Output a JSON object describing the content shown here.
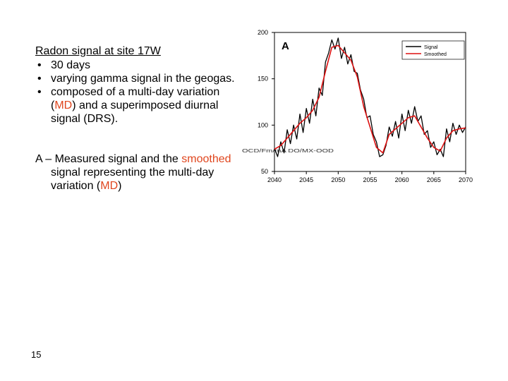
{
  "text": {
    "title": "Radon signal at site 17W",
    "bullets": [
      {
        "parts": [
          "30 days"
        ]
      },
      {
        "parts": [
          "varying gamma signal in the geogas."
        ]
      },
      {
        "parts": [
          "composed of a multi-day variation (",
          "MD",
          ") and a superimposed diurnal signal (DRS)."
        ]
      }
    ],
    "paragraph": [
      "A – Measured signal and the ",
      "smoothed",
      " signal representing the multi-day variation (",
      "MD",
      ")"
    ],
    "slide_number": "15"
  },
  "colors": {
    "highlight": "#e0461e",
    "signal": "#000000",
    "smoothed": "#dd1111"
  },
  "chart_data": {
    "type": "line",
    "panel_label": "A",
    "title": "",
    "xlabel": "",
    "ylabel": "",
    "xlim": [
      2040,
      2070
    ],
    "ylim": [
      50,
      200
    ],
    "xticks": [
      "2040",
      "2045",
      "2050",
      "2055",
      "2060",
      "2065",
      "2070"
    ],
    "yticks": [
      "50",
      "100",
      "150",
      "200"
    ],
    "legend_position": "top-right",
    "axis_annotation": "OCD/Fm/mA DO/MX-OOD",
    "series": [
      {
        "name": "Signal",
        "color": "#000000",
        "x": [
          2040,
          2040.5,
          2041,
          2041.5,
          2042,
          2042.5,
          2043,
          2043.5,
          2044,
          2044.5,
          2045,
          2045.5,
          2046,
          2046.5,
          2047,
          2047.5,
          2048,
          2048.5,
          2049,
          2049.5,
          2050,
          2050.5,
          2051,
          2051.5,
          2052,
          2052.5,
          2053,
          2053.5,
          2054,
          2054.5,
          2055,
          2055.5,
          2056,
          2056.5,
          2057,
          2057.5,
          2058,
          2058.5,
          2059,
          2059.5,
          2060,
          2060.5,
          2061,
          2061.5,
          2062,
          2062.5,
          2063,
          2063.5,
          2064,
          2064.5,
          2065,
          2065.5,
          2066,
          2066.5,
          2067,
          2067.5,
          2068,
          2068.5,
          2069,
          2069.5,
          2070
        ],
        "y": [
          75,
          66,
          82,
          70,
          95,
          80,
          100,
          85,
          112,
          92,
          118,
          102,
          128,
          110,
          140,
          132,
          168,
          178,
          192,
          182,
          194,
          172,
          184,
          166,
          176,
          158,
          156,
          138,
          128,
          108,
          110,
          90,
          82,
          66,
          68,
          78,
          98,
          88,
          104,
          86,
          112,
          94,
          116,
          102,
          120,
          104,
          110,
          90,
          94,
          76,
          82,
          68,
          74,
          66,
          96,
          82,
          102,
          90,
          100,
          92,
          98
        ]
      },
      {
        "name": "Smoothed",
        "color": "#dd1111",
        "x": [
          2040,
          2041,
          2042,
          2043,
          2044,
          2045,
          2046,
          2047,
          2048,
          2049,
          2050,
          2051,
          2052,
          2053,
          2054,
          2055,
          2056,
          2057,
          2058,
          2059,
          2060,
          2061,
          2062,
          2063,
          2064,
          2065,
          2066,
          2067,
          2068,
          2069,
          2070
        ],
        "y": [
          74,
          78,
          86,
          94,
          102,
          108,
          116,
          130,
          158,
          184,
          186,
          178,
          170,
          152,
          120,
          98,
          76,
          70,
          90,
          96,
          102,
          108,
          110,
          98,
          86,
          76,
          72,
          86,
          94,
          96,
          97
        ]
      }
    ]
  }
}
